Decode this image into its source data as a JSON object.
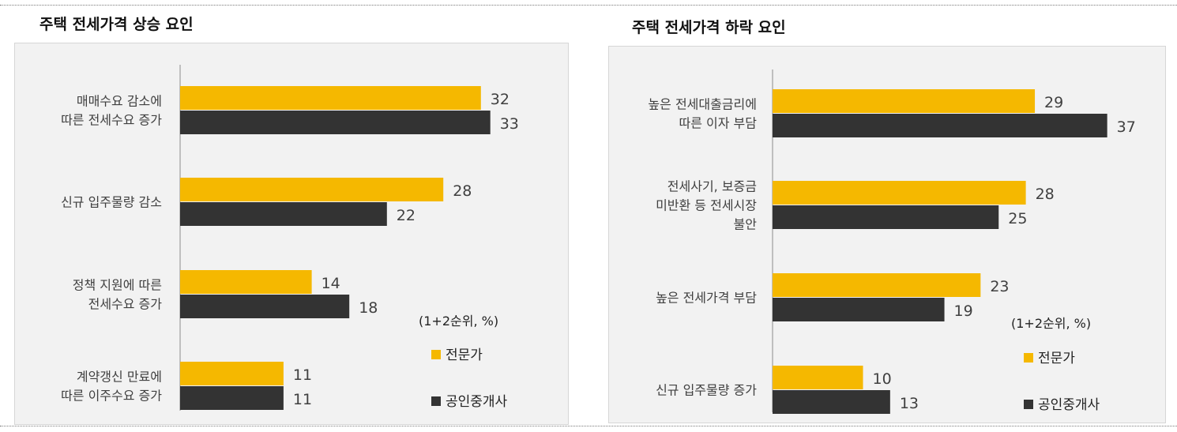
{
  "colors": {
    "expert": "#f5b800",
    "broker": "#333333",
    "axis": "#bfbfbf",
    "text": "#404040"
  },
  "chart_data": [
    {
      "type": "bar",
      "title": "주택 전세가격 상승 요인",
      "unit_note": "(1+2순위, %)",
      "categories": [
        "매매수요 감소에\n따른 전세수요 증가",
        "신규 입주물량 감소",
        "정책 지원에 따른\n전세수요 증가",
        "계약갱신 만료에\n따른 이주수요 증가"
      ],
      "series": [
        {
          "name": "전문가",
          "values": [
            32,
            28,
            14,
            11
          ]
        },
        {
          "name": "공인중개사",
          "values": [
            33,
            22,
            18,
            11
          ]
        }
      ],
      "xlim": [
        0,
        40
      ],
      "grid": false,
      "legend": "bottom-right"
    },
    {
      "type": "bar",
      "title": "주택 전세가격 하락 요인",
      "unit_note": "(1+2순위, %)",
      "categories": [
        "높은 전세대출금리에\n따른 이자 부담",
        "전세사기, 보증금\n미반환 등 전세시장\n불안",
        "높은 전세가격 부담",
        "신규 입주물량 증가"
      ],
      "series": [
        {
          "name": "전문가",
          "values": [
            29,
            28,
            23,
            10
          ]
        },
        {
          "name": "공인중개사",
          "values": [
            37,
            25,
            19,
            13
          ]
        }
      ],
      "xlim": [
        0,
        40
      ],
      "grid": false,
      "legend": "bottom-right"
    }
  ]
}
